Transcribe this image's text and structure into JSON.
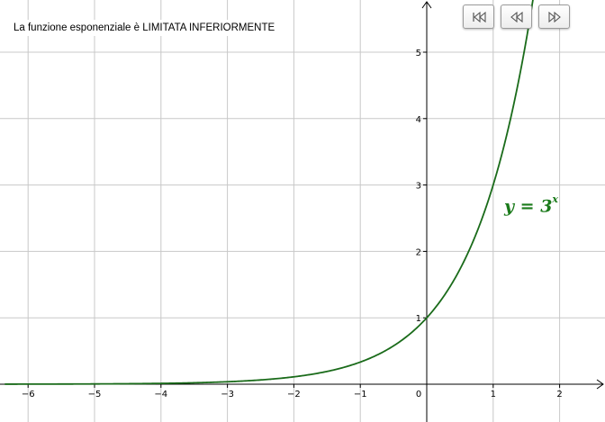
{
  "applet": {
    "caption": "La funzione esponenziale è LIMITATA INFERIORMENTE"
  },
  "curve_label": {
    "lhs": "y = 3",
    "exponent": "x"
  },
  "toolbar": {
    "buttons": [
      {
        "name": "first-step-button",
        "icon": "skip-to-start-icon"
      },
      {
        "name": "previous-step-button",
        "icon": "step-back-icon"
      },
      {
        "name": "next-step-button",
        "icon": "step-forward-icon"
      }
    ]
  },
  "colors": {
    "curve": "#1a6b1a",
    "grid": "#c8c8c8",
    "axes": "#000000"
  },
  "chart_data": {
    "type": "line",
    "function": "y = 3^x",
    "xlim": [
      -6.35,
      2.6
    ],
    "ylim": [
      -0.55,
      5.75
    ],
    "x_ticks": [
      "−6",
      "−5",
      "−4",
      "−3",
      "−2",
      "−1",
      "0",
      "1",
      "2"
    ],
    "x_tick_values": [
      -6,
      -5,
      -4,
      -3,
      -2,
      -1,
      0,
      1,
      2
    ],
    "y_ticks": [
      "1",
      "2",
      "3",
      "4",
      "5"
    ],
    "y_tick_values": [
      1,
      2,
      3,
      4,
      5
    ],
    "grid": true,
    "series": [
      {
        "values_x": [
          -6.35,
          -5,
          -4,
          -3,
          -2,
          -1,
          0,
          1,
          1.5,
          1.6
        ],
        "values_y": [
          0.001,
          0.004,
          0.012,
          0.037,
          0.111,
          0.333,
          1,
          3,
          5.196,
          5.8
        ]
      }
    ]
  }
}
